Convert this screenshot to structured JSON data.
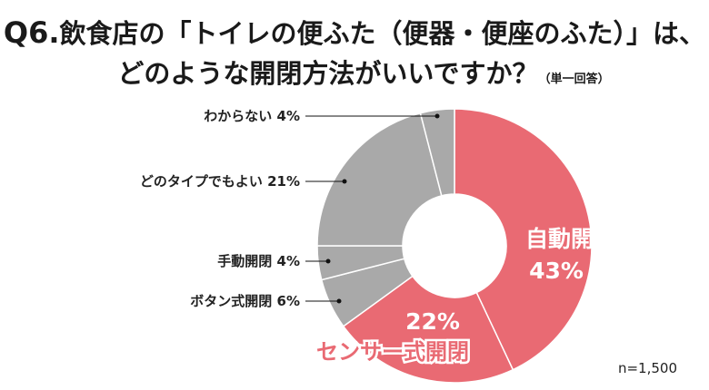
{
  "title": {
    "qnum": "Q6.",
    "line1": "飲食店の「トイレの便ふた（便器・便座のふた）」は、",
    "line2": "どのような開閉方法がいいですか？",
    "note": "（単一回答）"
  },
  "sample_size": "n=1,500",
  "colors": {
    "highlight": "#e96a73",
    "other": "#a9a9a9"
  },
  "chart_data": {
    "type": "pie",
    "variant": "donut",
    "start": "12 o'clock, clockwise",
    "slices": [
      {
        "label": "自動開閉",
        "value": 43,
        "display": "43%",
        "color": "#e96a73"
      },
      {
        "label": "センサー式開閉",
        "value": 22,
        "display": "22%",
        "color": "#e96a73"
      },
      {
        "label": "ボタン式開閉",
        "value": 6,
        "display": "ボタン式開閉 6%",
        "color": "#a9a9a9"
      },
      {
        "label": "手動開閉",
        "value": 4,
        "display": "手動開閉 4%",
        "color": "#a9a9a9"
      },
      {
        "label": "どのタイプでもよい",
        "value": 21,
        "display": "どのタイプでもよい 21%",
        "color": "#a9a9a9"
      },
      {
        "label": "わからない",
        "value": 4,
        "display": "わからない 4%",
        "color": "#a9a9a9"
      }
    ]
  }
}
